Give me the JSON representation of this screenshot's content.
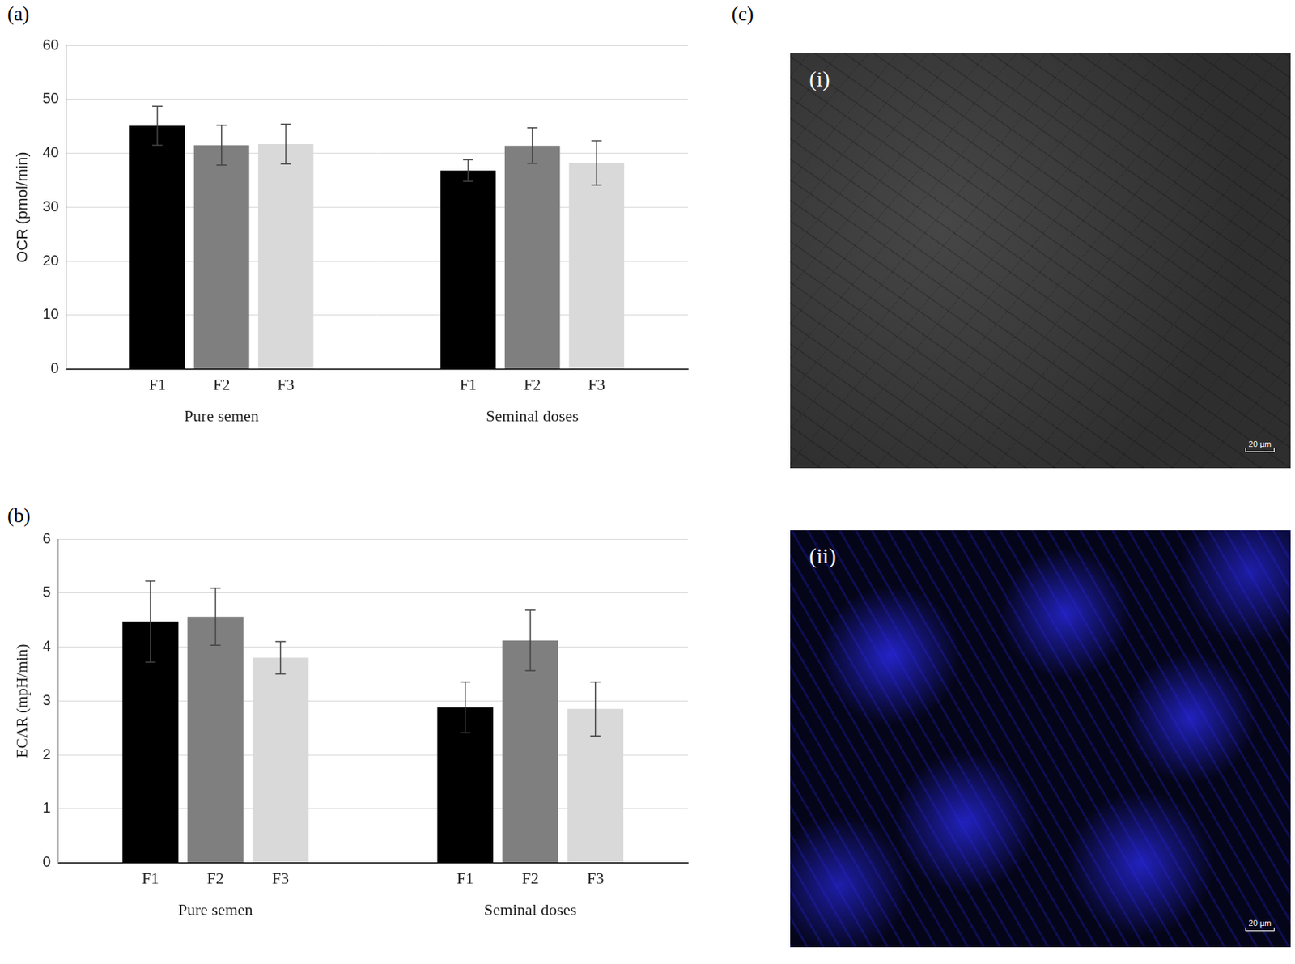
{
  "chart_data": [
    {
      "type": "bar",
      "panel": "(a)",
      "y_label": "OCR (pmol/min)",
      "categories": [
        "Pure semen",
        "Seminal doses"
      ],
      "series": [
        {
          "name": "F1",
          "color": "#000000",
          "values": [
            45.1,
            36.8
          ],
          "errors": [
            3.6,
            2.0
          ]
        },
        {
          "name": "F2",
          "color": "#7f7f7f",
          "values": [
            41.5,
            41.4
          ],
          "errors": [
            3.7,
            3.3
          ]
        },
        {
          "name": "F3",
          "color": "#d9d9d9",
          "values": [
            41.7,
            38.2
          ],
          "errors": [
            3.7,
            4.1
          ]
        }
      ],
      "ylim": [
        0,
        60
      ],
      "yticks": [
        0,
        10,
        20,
        30,
        40,
        50,
        60
      ],
      "grid": true
    },
    {
      "type": "bar",
      "panel": "(b)",
      "y_label": "ECAR (mpH/min)",
      "categories": [
        "Pure semen",
        "Seminal doses"
      ],
      "series": [
        {
          "name": "F1",
          "color": "#000000",
          "values": [
            4.47,
            2.88
          ],
          "errors": [
            0.75,
            0.47
          ]
        },
        {
          "name": "F2",
          "color": "#7f7f7f",
          "values": [
            4.56,
            4.12
          ],
          "errors": [
            0.53,
            0.56
          ]
        },
        {
          "name": "F3",
          "color": "#d9d9d9",
          "values": [
            3.8,
            2.85
          ],
          "errors": [
            0.3,
            0.5
          ]
        }
      ],
      "ylim": [
        0,
        6
      ],
      "yticks": [
        0,
        1,
        2,
        3,
        4,
        5,
        6
      ],
      "grid": true
    }
  ],
  "image_panel": {
    "panel": "(c)",
    "images": [
      {
        "label": "(i)",
        "scale_bar": "20 µm"
      },
      {
        "label": "(ii)",
        "scale_bar": "20 µm"
      }
    ]
  }
}
